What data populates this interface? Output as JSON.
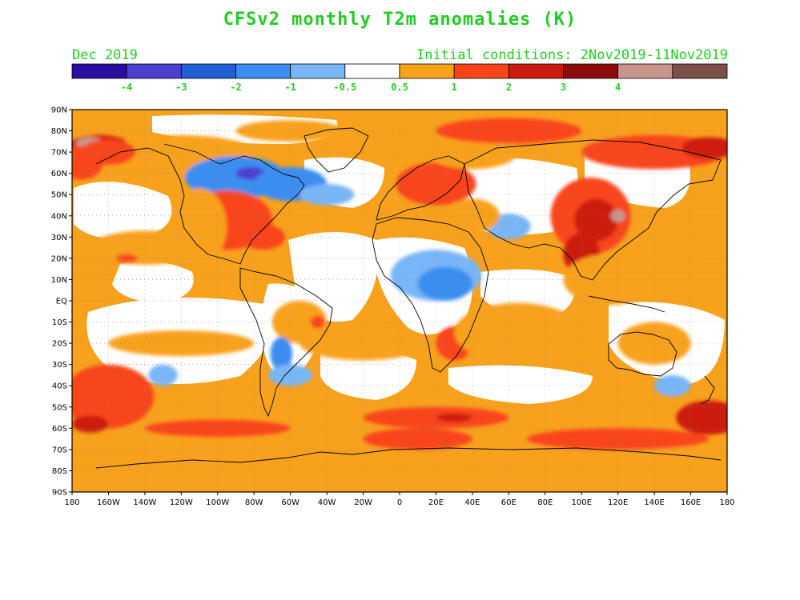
{
  "title": "CFSv2 monthly T2m anomalies (K)",
  "month_label": "Dec 2019",
  "init_label": "Initial conditions: 2Nov2019-11Nov2019",
  "colorbar": {
    "colors": [
      "#2a0c9e",
      "#4b3fd0",
      "#1f5fd6",
      "#3a8ef0",
      "#78b6f7",
      "#ffffff",
      "#f8a11d",
      "#f9441a",
      "#cc1b0b",
      "#8c0c0c",
      "#c8958c",
      "#7a5048"
    ],
    "labels": [
      "-4",
      "-3",
      "-2",
      "-1",
      "-0.5",
      "0.5",
      "1",
      "2",
      "3",
      "4"
    ]
  },
  "lat_labels": [
    "90N",
    "80N",
    "70N",
    "60N",
    "50N",
    "40N",
    "30N",
    "20N",
    "10N",
    "EQ",
    "10S",
    "20S",
    "30S",
    "40S",
    "50S",
    "60S",
    "70S",
    "80S",
    "90S"
  ],
  "lon_labels": [
    "180",
    "160W",
    "140W",
    "120W",
    "100W",
    "80W",
    "60W",
    "40W",
    "20W",
    "0",
    "20E",
    "40E",
    "60E",
    "80E",
    "100E",
    "120E",
    "140E",
    "160E",
    "180"
  ],
  "anomaly_blobs": [
    {
      "lon": -165,
      "lat": 72,
      "rx": 18,
      "ry": 6,
      "level": 3
    },
    {
      "lon": -170,
      "lat": 74,
      "rx": 8,
      "ry": 3,
      "level": 4
    },
    {
      "lon": -175,
      "lat": 65,
      "rx": 12,
      "ry": 8,
      "level": 2
    },
    {
      "lon": -120,
      "lat": 70,
      "rx": 40,
      "ry": 8,
      "level": 1
    },
    {
      "lon": -110,
      "lat": 60,
      "rx": 10,
      "ry": 5,
      "level": 1
    },
    {
      "lon": -90,
      "lat": 58,
      "rx": 28,
      "ry": 10,
      "level": -1
    },
    {
      "lon": -82,
      "lat": 60,
      "rx": 8,
      "ry": 3,
      "level": -3
    },
    {
      "lon": -60,
      "lat": 55,
      "rx": 20,
      "ry": 8,
      "level": -1
    },
    {
      "lon": -40,
      "lat": 50,
      "rx": 15,
      "ry": 5,
      "level": -0.5
    },
    {
      "lon": -95,
      "lat": 38,
      "rx": 25,
      "ry": 14,
      "level": 2
    },
    {
      "lon": -75,
      "lat": 30,
      "rx": 12,
      "ry": 6,
      "level": 2
    },
    {
      "lon": -110,
      "lat": 35,
      "rx": 15,
      "ry": 18,
      "level": 1
    },
    {
      "lon": -140,
      "lat": 25,
      "rx": 30,
      "ry": 8,
      "level": 1
    },
    {
      "lon": -150,
      "lat": 20,
      "rx": 6,
      "ry": 2,
      "level": 2
    },
    {
      "lon": -60,
      "lat": 80,
      "rx": 30,
      "ry": 5,
      "level": 1
    },
    {
      "lon": 20,
      "lat": 55,
      "rx": 22,
      "ry": 10,
      "level": 2
    },
    {
      "lon": 40,
      "lat": 70,
      "rx": 25,
      "ry": 8,
      "level": 1
    },
    {
      "lon": 60,
      "lat": 80,
      "rx": 40,
      "ry": 6,
      "level": 2
    },
    {
      "lon": 140,
      "lat": 70,
      "rx": 40,
      "ry": 8,
      "level": 2
    },
    {
      "lon": 170,
      "lat": 72,
      "rx": 15,
      "ry": 5,
      "level": 3
    },
    {
      "lon": 105,
      "lat": 40,
      "rx": 22,
      "ry": 18,
      "level": 2
    },
    {
      "lon": 108,
      "lat": 38,
      "rx": 12,
      "ry": 10,
      "level": 3
    },
    {
      "lon": 120,
      "lat": 40,
      "rx": 4,
      "ry": 3,
      "level": 4
    },
    {
      "lon": 100,
      "lat": 22,
      "rx": 10,
      "ry": 10,
      "level": 3
    },
    {
      "lon": 115,
      "lat": 10,
      "rx": 25,
      "ry": 12,
      "level": 1
    },
    {
      "lon": 20,
      "lat": 12,
      "rx": 25,
      "ry": 12,
      "level": -0.5
    },
    {
      "lon": 25,
      "lat": 8,
      "rx": 15,
      "ry": 8,
      "level": -1
    },
    {
      "lon": 60,
      "lat": 35,
      "rx": 12,
      "ry": 6,
      "level": -0.5
    },
    {
      "lon": 40,
      "lat": 40,
      "rx": 15,
      "ry": 8,
      "level": 0.5
    },
    {
      "lon": 30,
      "lat": -20,
      "rx": 10,
      "ry": 8,
      "level": 2
    },
    {
      "lon": 70,
      "lat": -12,
      "rx": 20,
      "ry": 8,
      "level": 2
    },
    {
      "lon": 65,
      "lat": -15,
      "rx": 35,
      "ry": 14,
      "level": 1
    },
    {
      "lon": 140,
      "lat": -20,
      "rx": 20,
      "ry": 10,
      "level": 1
    },
    {
      "lon": -55,
      "lat": -10,
      "rx": 15,
      "ry": 10,
      "level": 1
    },
    {
      "lon": -45,
      "lat": -10,
      "rx": 4,
      "ry": 3,
      "level": 2
    },
    {
      "lon": -65,
      "lat": -25,
      "rx": 6,
      "ry": 8,
      "level": -1
    },
    {
      "lon": -120,
      "lat": -20,
      "rx": 40,
      "ry": 6,
      "level": 1
    },
    {
      "lon": -20,
      "lat": -20,
      "rx": 35,
      "ry": 8,
      "level": 1
    },
    {
      "lon": -160,
      "lat": -45,
      "rx": 25,
      "ry": 15,
      "level": 2
    },
    {
      "lon": -170,
      "lat": -58,
      "rx": 10,
      "ry": 4,
      "level": 3
    },
    {
      "lon": -100,
      "lat": -60,
      "rx": 40,
      "ry": 4,
      "level": 2
    },
    {
      "lon": 20,
      "lat": -55,
      "rx": 40,
      "ry": 5,
      "level": 2
    },
    {
      "lon": 30,
      "lat": -55,
      "rx": 10,
      "ry": 2,
      "level": 3
    },
    {
      "lon": 170,
      "lat": -55,
      "rx": 18,
      "ry": 8,
      "level": 3
    },
    {
      "lon": 10,
      "lat": -65,
      "rx": 30,
      "ry": 5,
      "level": 2
    },
    {
      "lon": 120,
      "lat": -65,
      "rx": 50,
      "ry": 5,
      "level": 2
    },
    {
      "lon": -60,
      "lat": -35,
      "rx": 12,
      "ry": 5,
      "level": -0.5
    },
    {
      "lon": -130,
      "lat": -35,
      "rx": 8,
      "ry": 5,
      "level": -0.5
    },
    {
      "lon": 150,
      "lat": -40,
      "rx": 10,
      "ry": 5,
      "level": -0.5
    },
    {
      "lon": -160,
      "lat": 70,
      "rx": 15,
      "ry": 6,
      "level": 2
    }
  ]
}
